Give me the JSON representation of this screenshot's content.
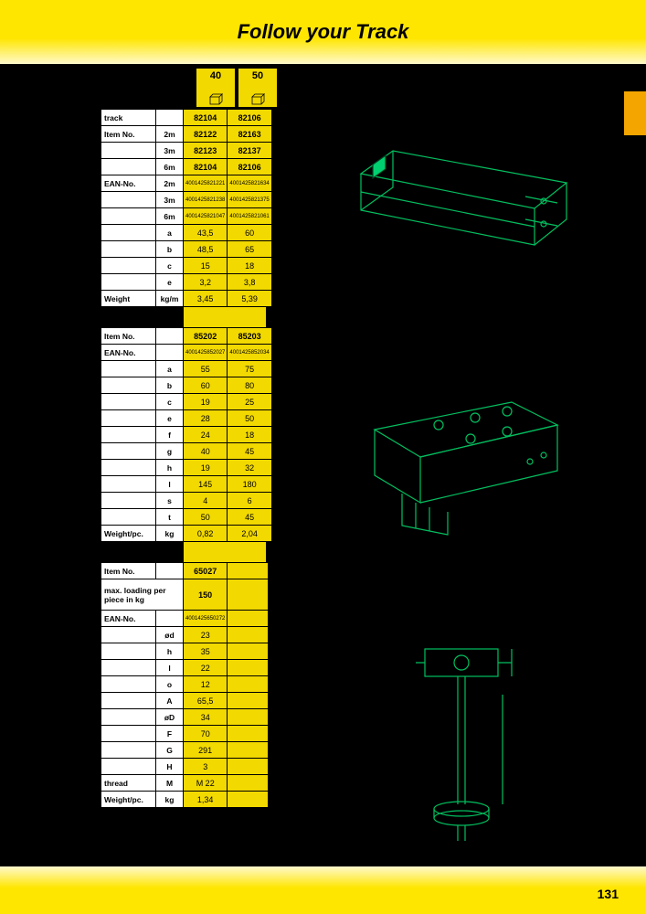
{
  "title": "Follow your Track",
  "page_number": "131",
  "sizes": [
    "40",
    "50"
  ],
  "table1": {
    "rows": [
      {
        "lbl": "track",
        "sub": "",
        "c1": "82104",
        "c2": "82106",
        "bold": true
      },
      {
        "lbl": "Item No.",
        "sub": "2m",
        "c1": "82122",
        "c2": "82163",
        "bold": true
      },
      {
        "lbl": "",
        "sub": "3m",
        "c1": "82123",
        "c2": "82137",
        "bold": true
      },
      {
        "lbl": "",
        "sub": "6m",
        "c1": "82104",
        "c2": "82106",
        "bold": true
      },
      {
        "lbl": "EAN-No.",
        "sub": "2m",
        "c1": "4001425821221",
        "c2": "4001425821634",
        "ean": true
      },
      {
        "lbl": "",
        "sub": "3m",
        "c1": "4001425821238",
        "c2": "4001425821375",
        "ean": true
      },
      {
        "lbl": "",
        "sub": "6m",
        "c1": "4001425821047",
        "c2": "4001425821061",
        "ean": true
      },
      {
        "lbl": "",
        "sub": "a",
        "c1": "43,5",
        "c2": "60"
      },
      {
        "lbl": "",
        "sub": "b",
        "c1": "48,5",
        "c2": "65"
      },
      {
        "lbl": "",
        "sub": "c",
        "c1": "15",
        "c2": "18"
      },
      {
        "lbl": "",
        "sub": "e",
        "c1": "3,2",
        "c2": "3,8"
      },
      {
        "lbl": "Weight",
        "sub": "kg/m",
        "c1": "3,45",
        "c2": "5,39"
      }
    ]
  },
  "table2": {
    "rows": [
      {
        "lbl": "Item No.",
        "sub": "",
        "c1": "85202",
        "c2": "85203",
        "bold": true
      },
      {
        "lbl": "EAN-No.",
        "sub": "",
        "c1": "4001425852027",
        "c2": "4001425852034",
        "ean": true
      },
      {
        "lbl": "",
        "sub": "a",
        "c1": "55",
        "c2": "75"
      },
      {
        "lbl": "",
        "sub": "b",
        "c1": "60",
        "c2": "80"
      },
      {
        "lbl": "",
        "sub": "c",
        "c1": "19",
        "c2": "25"
      },
      {
        "lbl": "",
        "sub": "e",
        "c1": "28",
        "c2": "50"
      },
      {
        "lbl": "",
        "sub": "f",
        "c1": "24",
        "c2": "18"
      },
      {
        "lbl": "",
        "sub": "g",
        "c1": "40",
        "c2": "45"
      },
      {
        "lbl": "",
        "sub": "h",
        "c1": "19",
        "c2": "32"
      },
      {
        "lbl": "",
        "sub": "l",
        "c1": "145",
        "c2": "180"
      },
      {
        "lbl": "",
        "sub": "s",
        "c1": "4",
        "c2": "6"
      },
      {
        "lbl": "",
        "sub": "t",
        "c1": "50",
        "c2": "45"
      },
      {
        "lbl": "Weight/pc.",
        "sub": "kg",
        "c1": "0,82",
        "c2": "2,04"
      }
    ]
  },
  "table3": {
    "rows": [
      {
        "lbl": "Item No.",
        "sub": "",
        "c1": "65027",
        "c2": "",
        "bold": true
      },
      {
        "lbl": "max. loading per piece in kg",
        "span": true,
        "c1": "150",
        "c2": "",
        "bold": true,
        "tall": true
      },
      {
        "lbl": "EAN-No.",
        "sub": "",
        "c1": "4001425650272",
        "c2": "",
        "ean": true
      },
      {
        "lbl": "",
        "sub": "ød",
        "c1": "23",
        "c2": ""
      },
      {
        "lbl": "",
        "sub": "h",
        "c1": "35",
        "c2": ""
      },
      {
        "lbl": "",
        "sub": "l",
        "c1": "22",
        "c2": ""
      },
      {
        "lbl": "",
        "sub": "o",
        "c1": "12",
        "c2": ""
      },
      {
        "lbl": "",
        "sub": "A",
        "c1": "65,5",
        "c2": ""
      },
      {
        "lbl": "",
        "sub": "øD",
        "c1": "34",
        "c2": ""
      },
      {
        "lbl": "",
        "sub": "F",
        "c1": "70",
        "c2": ""
      },
      {
        "lbl": "",
        "sub": "G",
        "c1": "291",
        "c2": ""
      },
      {
        "lbl": "",
        "sub": "H",
        "c1": "3",
        "c2": ""
      },
      {
        "lbl": "thread",
        "sub": "M",
        "c1": "M 22",
        "c2": ""
      },
      {
        "lbl": "Weight/pc.",
        "sub": "kg",
        "c1": "1,34",
        "c2": ""
      }
    ]
  }
}
